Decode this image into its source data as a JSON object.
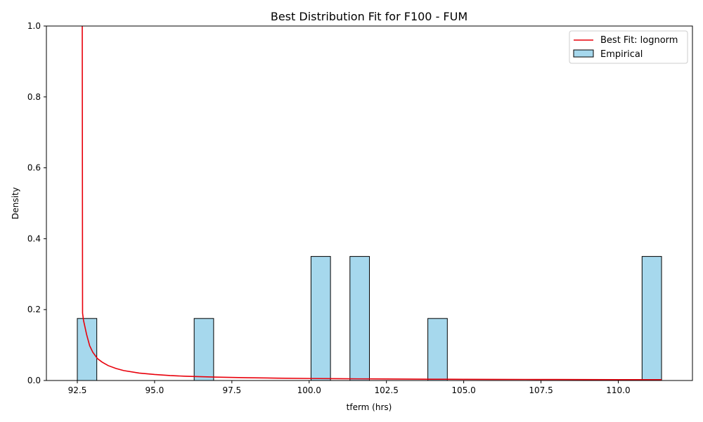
{
  "chart_data": {
    "type": "bar",
    "title": "Best Distribution Fit for F100 - FUM",
    "xlabel": "tferm (hrs)",
    "ylabel": "Density",
    "xlim": [
      91.5,
      112.4
    ],
    "ylim": [
      0,
      1.0
    ],
    "x_ticks": [
      92.5,
      95.0,
      97.5,
      100.0,
      102.5,
      105.0,
      107.5,
      110.0
    ],
    "x_tick_labels": [
      "92.5",
      "95.0",
      "97.5",
      "100.0",
      "102.5",
      "105.0",
      "107.5",
      "110.0"
    ],
    "y_ticks": [
      0.0,
      0.2,
      0.4,
      0.6,
      0.8,
      1.0
    ],
    "y_tick_labels": [
      "0.0",
      "0.2",
      "0.4",
      "0.6",
      "0.8",
      "1.0"
    ],
    "legend": {
      "placement": "top-right",
      "entries": [
        "Best Fit: lognorm",
        "Empirical"
      ]
    },
    "histogram": {
      "name": "Empirical",
      "color": "#a6d8ed",
      "edge_color": "#000000",
      "bins": [
        {
          "left": 92.5,
          "right": 93.13,
          "value": 0.175
        },
        {
          "left": 96.28,
          "right": 96.91,
          "value": 0.175
        },
        {
          "left": 100.06,
          "right": 100.69,
          "value": 0.35
        },
        {
          "left": 101.32,
          "right": 101.95,
          "value": 0.35
        },
        {
          "left": 103.84,
          "right": 104.47,
          "value": 0.175
        },
        {
          "left": 110.77,
          "right": 111.4,
          "value": 0.35
        }
      ]
    },
    "fit_line": {
      "name": "Best Fit: lognorm",
      "color": "#e8000b",
      "x": [
        92.66,
        92.665,
        92.67,
        92.7,
        92.8,
        92.9,
        93.0,
        93.15,
        93.3,
        93.5,
        93.75,
        94.0,
        94.5,
        95.0,
        95.5,
        96.0,
        97.0,
        98.0,
        99.0,
        100.0,
        101.0,
        102.0,
        103.0,
        104.0,
        105.0,
        106.0,
        107.0,
        108.0,
        109.0,
        110.0,
        111.0,
        111.4
      ],
      "y": [
        1.0,
        0.6,
        0.19,
        0.17,
        0.13,
        0.098,
        0.08,
        0.062,
        0.052,
        0.042,
        0.034,
        0.028,
        0.021,
        0.017,
        0.014,
        0.012,
        0.0095,
        0.0078,
        0.0066,
        0.0057,
        0.005,
        0.0045,
        0.0041,
        0.0037,
        0.0034,
        0.0032,
        0.003,
        0.0028,
        0.0026,
        0.0025,
        0.0024,
        0.0023
      ]
    }
  }
}
